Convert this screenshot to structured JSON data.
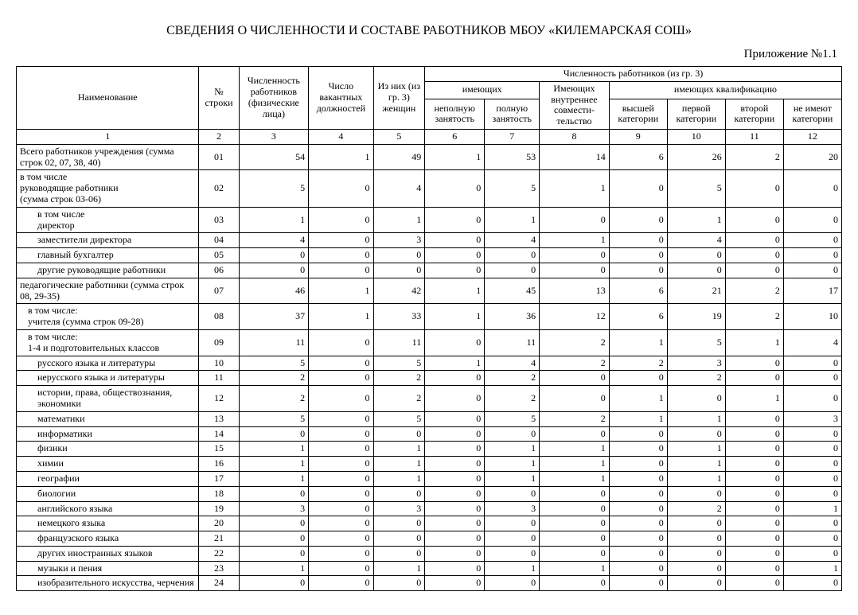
{
  "title": "СВЕДЕНИЯ О ЧИСЛЕННОСТИ И СОСТАВЕ РАБОТНИКОВ МБОУ «КИЛЕМАРСКАЯ СОШ»",
  "appendix": "Приложение №1.1",
  "header": {
    "c1": "Наименование",
    "c2": "№ строки",
    "c3": "Численность работников (физические лица)",
    "c4": "Число вакантных должностей",
    "c5": "Из них (из гр. 3) женщин",
    "group": "Численность работников (из гр. 3)",
    "grp1": "имеющих",
    "grp2": "Имеющих внутреннее совмести-тельство",
    "grp3": "имеющих квалификацию",
    "c6": "неполную занятость",
    "c7": "полную занятость",
    "c9": "высшей категории",
    "c10": "первой категории",
    "c11": "второй категории",
    "c12": "не имеют категории"
  },
  "colnums": [
    "1",
    "2",
    "3",
    "4",
    "5",
    "6",
    "7",
    "8",
    "9",
    "10",
    "11",
    "12"
  ],
  "rows": [
    {
      "name": "Всего работников учреждения (сумма строк 02, 07, 38, 40)",
      "ind": 0,
      "n": "01",
      "v": [
        54,
        1,
        49,
        1,
        53,
        14,
        6,
        26,
        2,
        20
      ]
    },
    {
      "name": "в том числе\n  руководящие работники\n  (сумма строк 03-06)",
      "ind": 0,
      "n": "02",
      "v": [
        5,
        0,
        4,
        0,
        5,
        1,
        0,
        5,
        0,
        0
      ]
    },
    {
      "name": "в том числе\n  директор",
      "ind": 2,
      "n": "03",
      "v": [
        1,
        0,
        1,
        0,
        1,
        0,
        0,
        1,
        0,
        0
      ]
    },
    {
      "name": "заместители директора",
      "ind": 2,
      "n": "04",
      "v": [
        4,
        0,
        3,
        0,
        4,
        1,
        0,
        4,
        0,
        0
      ]
    },
    {
      "name": "главный бухгалтер",
      "ind": 2,
      "n": "05",
      "v": [
        0,
        0,
        0,
        0,
        0,
        0,
        0,
        0,
        0,
        0
      ]
    },
    {
      "name": "другие руководящие работники",
      "ind": 2,
      "n": "06",
      "v": [
        0,
        0,
        0,
        0,
        0,
        0,
        0,
        0,
        0,
        0
      ]
    },
    {
      "name": "педагогические работники (сумма строк 08, 29-35)",
      "ind": 0,
      "n": "07",
      "v": [
        46,
        1,
        42,
        1,
        45,
        13,
        6,
        21,
        2,
        17
      ]
    },
    {
      "name": "в том числе:\n  учителя (сумма строк 09-28)",
      "ind": 1,
      "n": "08",
      "v": [
        37,
        1,
        33,
        1,
        36,
        12,
        6,
        19,
        2,
        10
      ]
    },
    {
      "name": "в том числе:\n  1-4 и подготовительных классов",
      "ind": 1,
      "n": "09",
      "v": [
        11,
        0,
        11,
        0,
        11,
        2,
        1,
        5,
        1,
        4
      ]
    },
    {
      "name": "русского языка и литературы",
      "ind": 2,
      "n": "10",
      "v": [
        5,
        0,
        5,
        1,
        4,
        2,
        2,
        3,
        0,
        0
      ]
    },
    {
      "name": "нерусского языка и литературы",
      "ind": 2,
      "n": "11",
      "v": [
        2,
        0,
        2,
        0,
        2,
        0,
        0,
        2,
        0,
        0
      ]
    },
    {
      "name": "истории, права, обществознания, экономики",
      "ind": 2,
      "n": "12",
      "v": [
        2,
        0,
        2,
        0,
        2,
        0,
        1,
        0,
        1,
        0
      ]
    },
    {
      "name": "математики",
      "ind": 2,
      "n": "13",
      "v": [
        5,
        0,
        5,
        0,
        5,
        2,
        1,
        1,
        0,
        3
      ]
    },
    {
      "name": "информатики",
      "ind": 2,
      "n": "14",
      "v": [
        0,
        0,
        0,
        0,
        0,
        0,
        0,
        0,
        0,
        0
      ]
    },
    {
      "name": "физики",
      "ind": 2,
      "n": "15",
      "v": [
        1,
        0,
        1,
        0,
        1,
        1,
        0,
        1,
        0,
        0
      ]
    },
    {
      "name": "химии",
      "ind": 2,
      "n": "16",
      "v": [
        1,
        0,
        1,
        0,
        1,
        1,
        0,
        1,
        0,
        0
      ]
    },
    {
      "name": "географии",
      "ind": 2,
      "n": "17",
      "v": [
        1,
        0,
        1,
        0,
        1,
        1,
        0,
        1,
        0,
        0
      ]
    },
    {
      "name": "биологии",
      "ind": 2,
      "n": "18",
      "v": [
        0,
        0,
        0,
        0,
        0,
        0,
        0,
        0,
        0,
        0
      ]
    },
    {
      "name": "английского языка",
      "ind": 2,
      "n": "19",
      "v": [
        3,
        0,
        3,
        0,
        3,
        0,
        0,
        2,
        0,
        1
      ]
    },
    {
      "name": "немецкого языка",
      "ind": 2,
      "n": "20",
      "v": [
        0,
        0,
        0,
        0,
        0,
        0,
        0,
        0,
        0,
        0
      ]
    },
    {
      "name": "французского языка",
      "ind": 2,
      "n": "21",
      "v": [
        0,
        0,
        0,
        0,
        0,
        0,
        0,
        0,
        0,
        0
      ]
    },
    {
      "name": "других иностранных языков",
      "ind": 2,
      "n": "22",
      "v": [
        0,
        0,
        0,
        0,
        0,
        0,
        0,
        0,
        0,
        0
      ]
    },
    {
      "name": "музыки и пения",
      "ind": 2,
      "n": "23",
      "v": [
        1,
        0,
        1,
        0,
        1,
        1,
        0,
        0,
        0,
        1
      ]
    },
    {
      "name": "изобразительного  искусства, черчения",
      "ind": 2,
      "n": "24",
      "v": [
        0,
        0,
        0,
        0,
        0,
        0,
        0,
        0,
        0,
        0
      ]
    }
  ]
}
